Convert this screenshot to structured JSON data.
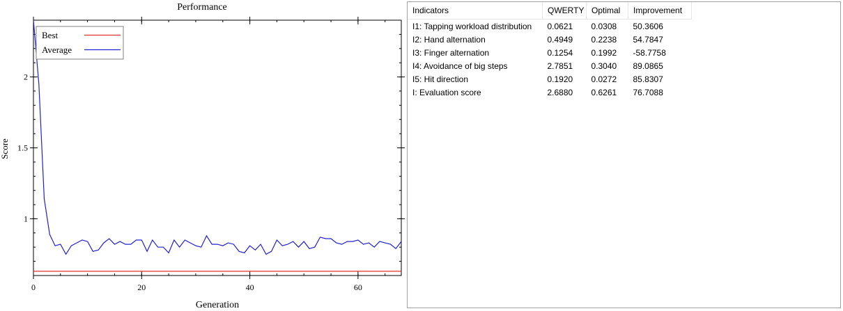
{
  "chart_data": {
    "type": "line",
    "title": "Performance",
    "xlabel": "Generation",
    "ylabel": "Score",
    "xlim": [
      0,
      68
    ],
    "ylim": [
      0.6,
      2.4
    ],
    "x_ticks": [
      0,
      20,
      40,
      60
    ],
    "y_ticks": [
      1,
      1.5,
      2
    ],
    "x_tick_labels": [
      "0",
      "20",
      "40",
      "60"
    ],
    "y_tick_labels": [
      "1",
      "1.5",
      "2"
    ],
    "legend_position": "top-left",
    "series": [
      {
        "name": "Best",
        "color": "#e03030",
        "x": [
          0,
          68
        ],
        "values": [
          0.63,
          0.63
        ]
      },
      {
        "name": "Average",
        "color": "#2020d8",
        "x": [
          0,
          1,
          2,
          3,
          4,
          5,
          6,
          7,
          8,
          9,
          10,
          11,
          12,
          13,
          14,
          15,
          16,
          17,
          18,
          19,
          20,
          21,
          22,
          23,
          24,
          25,
          26,
          27,
          28,
          29,
          30,
          31,
          32,
          33,
          34,
          35,
          36,
          37,
          38,
          39,
          40,
          41,
          42,
          43,
          44,
          45,
          46,
          47,
          48,
          49,
          50,
          51,
          52,
          53,
          54,
          55,
          56,
          57,
          58,
          59,
          60,
          61,
          62,
          63,
          64,
          65,
          66,
          67,
          68
        ],
        "values": [
          2.4,
          1.95,
          1.14,
          0.89,
          0.81,
          0.82,
          0.75,
          0.81,
          0.83,
          0.85,
          0.84,
          0.77,
          0.78,
          0.83,
          0.86,
          0.82,
          0.84,
          0.82,
          0.82,
          0.85,
          0.85,
          0.77,
          0.85,
          0.8,
          0.8,
          0.76,
          0.85,
          0.8,
          0.85,
          0.83,
          0.81,
          0.8,
          0.88,
          0.82,
          0.82,
          0.81,
          0.83,
          0.82,
          0.77,
          0.76,
          0.81,
          0.78,
          0.82,
          0.75,
          0.77,
          0.85,
          0.81,
          0.82,
          0.84,
          0.8,
          0.84,
          0.79,
          0.8,
          0.87,
          0.86,
          0.86,
          0.83,
          0.82,
          0.84,
          0.84,
          0.85,
          0.82,
          0.83,
          0.8,
          0.84,
          0.83,
          0.82,
          0.79,
          0.84
        ]
      }
    ]
  },
  "table": {
    "headers": [
      "Indicators",
      "QWERTY",
      "Optimal",
      "Improvement"
    ],
    "rows": [
      [
        "I1: Tapping workload distribution",
        "0.0621",
        "0.0308",
        "50.3606"
      ],
      [
        "I2: Hand alternation",
        "0.4949",
        "0.2238",
        "54.7847"
      ],
      [
        "I3: Finger alternation",
        "0.1254",
        "0.1992",
        "-58.7758"
      ],
      [
        "I4: Avoidance of big steps",
        "2.7851",
        "0.3040",
        "89.0865"
      ],
      [
        "I5: Hit direction",
        "0.1920",
        "0.0272",
        "85.8307"
      ],
      [
        "I: Evaluation score",
        "2.6880",
        "0.6261",
        "76.7088"
      ]
    ]
  }
}
